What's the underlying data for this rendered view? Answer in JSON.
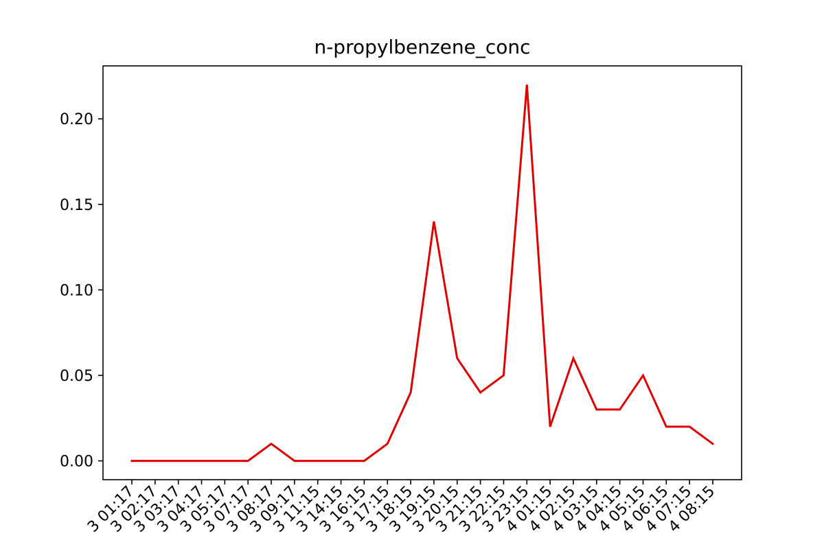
{
  "chart_data": {
    "type": "line",
    "title": "n-propylbenzene_conc",
    "xlabel": "",
    "ylabel": "",
    "x_tick_labels": [
      "3 01:17",
      "3 02:17",
      "3 03:17",
      "3 04:17",
      "3 05:17",
      "3 07:17",
      "3 08:17",
      "3 09:17",
      "3 11:15",
      "3 14:15",
      "3 16:15",
      "3 17:15",
      "3 18:15",
      "3 19:15",
      "3 20:15",
      "3 21:15",
      "3 22:15",
      "3 23:15",
      "4 01:15",
      "4 02:15",
      "4 03:15",
      "4 04:15",
      "4 05:15",
      "4 06:15",
      "4 07:15",
      "4 08:15"
    ],
    "series": [
      {
        "values": [
          0,
          0,
          0,
          0,
          0,
          0,
          0.01,
          0,
          0,
          0,
          0,
          0.01,
          0.04,
          0.14,
          0.06,
          0.04,
          0.05,
          0.22,
          0.02,
          0.06,
          0.03,
          0.03,
          0.05,
          0.02,
          0.02,
          0.01
        ],
        "color": "#e00000"
      }
    ],
    "y_ticks": [
      "0.00",
      "0.05",
      "0.10",
      "0.15",
      "0.20"
    ],
    "y_tick_values": [
      0,
      0.05,
      0.1,
      0.15,
      0.2
    ],
    "ylim": [
      -0.011,
      0.231
    ],
    "grid": false
  }
}
